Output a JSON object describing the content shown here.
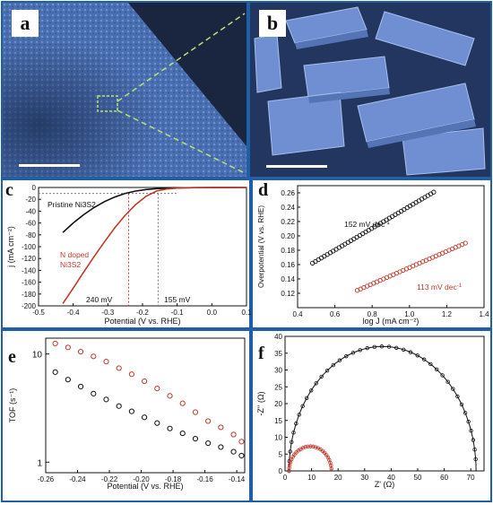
{
  "panels": {
    "a": {
      "label": "a"
    },
    "b": {
      "label": "b"
    },
    "c": {
      "label": "c"
    },
    "d": {
      "label": "d"
    },
    "e": {
      "label": "e"
    },
    "f": {
      "label": "f"
    }
  },
  "colors": {
    "frame": "#1f5fa8",
    "sem": "#3d5f9e",
    "black": "#111111",
    "red": "#c0392b"
  },
  "chart_data": [
    {
      "id": "c",
      "type": "line",
      "xlabel": "Potential (V vs. RHE)",
      "ylabel": "j (mA cm⁻²)",
      "xlim": [
        -0.5,
        0.1
      ],
      "ylim": [
        -200,
        0
      ],
      "xticks": [
        "-0.5",
        "-0.4",
        "-0.3",
        "-0.2",
        "-0.1",
        "0.0",
        "0.1"
      ],
      "yticks": [
        "0",
        "-20",
        "-40",
        "-60",
        "-80",
        "-100",
        "-120",
        "-140",
        "-160",
        "-180",
        "-200"
      ],
      "series": [
        {
          "name": "Pristine Ni3S2",
          "color": "#111111",
          "x": [
            -0.43,
            -0.4,
            -0.37,
            -0.34,
            -0.31,
            -0.28,
            -0.25,
            -0.22,
            -0.19,
            -0.16,
            -0.13,
            -0.1,
            -0.05,
            0.0,
            0.1
          ],
          "y": [
            -76,
            -60,
            -46,
            -34,
            -24,
            -16,
            -10,
            -6,
            -3.5,
            -2,
            -1.2,
            -0.6,
            -0.3,
            -0.1,
            0
          ]
        },
        {
          "name": "N doped Ni3S2",
          "color": "#c0392b",
          "x": [
            -0.43,
            -0.4,
            -0.37,
            -0.34,
            -0.31,
            -0.28,
            -0.25,
            -0.22,
            -0.19,
            -0.16,
            -0.13,
            -0.1,
            -0.05,
            0.0,
            0.1
          ],
          "y": [
            -196,
            -170,
            -143,
            -117,
            -92,
            -68,
            -47,
            -29,
            -15,
            -6,
            -2.5,
            -1,
            -0.3,
            -0.1,
            0
          ]
        }
      ],
      "annotations": [
        {
          "text": "Pristine Ni3S2"
        },
        {
          "text": "N doped Ni3S2"
        },
        {
          "text": "240 mV"
        },
        {
          "text": "155 mV"
        }
      ],
      "dashed_lines": {
        "y_ref": -10,
        "x_values": [
          -0.24,
          -0.155
        ]
      }
    },
    {
      "id": "d",
      "type": "scatter",
      "xlabel": "log J (mA cm⁻²)",
      "ylabel": "Overpotential (V vs. RHE)",
      "xlim": [
        0.4,
        1.4
      ],
      "ylim": [
        0.1,
        0.27
      ],
      "xticks": [
        "0.4",
        "0.6",
        "0.8",
        "1.0",
        "1.2",
        "1.4"
      ],
      "yticks": [
        "0.12",
        "0.14",
        "0.16",
        "0.18",
        "0.20",
        "0.22",
        "0.24",
        "0.26"
      ],
      "series": [
        {
          "name": "152 mV dec-1",
          "color": "#111111",
          "x_range": [
            0.48,
            1.13
          ],
          "y_range": [
            0.162,
            0.261
          ],
          "n": 42
        },
        {
          "name": "113 mV dec-1",
          "color": "#c0392b",
          "x_range": [
            0.72,
            1.3
          ],
          "y_range": [
            0.124,
            0.19
          ],
          "n": 34
        }
      ],
      "annotations": [
        {
          "text": "152 mV dec",
          "sup": "-1"
        },
        {
          "text": "113 mV dec",
          "sup": "-1"
        }
      ]
    },
    {
      "id": "e",
      "type": "scatter",
      "xlabel": "Potential (V vs. RHE)",
      "ylabel": "TOF (s⁻¹)",
      "xlim": [
        -0.26,
        -0.135
      ],
      "ylim_log": [
        0.8,
        14
      ],
      "xticks": [
        "-0.26",
        "-0.24",
        "-0.22",
        "-0.20",
        "-0.18",
        "-0.16",
        "-0.14"
      ],
      "yticks": [
        "1",
        "10"
      ],
      "series": [
        {
          "color": "#c0392b",
          "x": [
            -0.254,
            -0.246,
            -0.238,
            -0.23,
            -0.222,
            -0.214,
            -0.206,
            -0.198,
            -0.19,
            -0.182,
            -0.174,
            -0.166,
            -0.158,
            -0.15,
            -0.142,
            -0.137
          ],
          "y": [
            12.5,
            11.5,
            10.5,
            9.5,
            8.5,
            7.4,
            6.5,
            5.6,
            4.8,
            4.1,
            3.5,
            2.9,
            2.4,
            2.1,
            1.8,
            1.55
          ]
        },
        {
          "color": "#111111",
          "x": [
            -0.254,
            -0.246,
            -0.238,
            -0.23,
            -0.222,
            -0.214,
            -0.206,
            -0.198,
            -0.19,
            -0.182,
            -0.174,
            -0.166,
            -0.158,
            -0.15,
            -0.142,
            -0.137
          ],
          "y": [
            6.8,
            5.8,
            5.0,
            4.3,
            3.8,
            3.3,
            2.95,
            2.6,
            2.3,
            2.05,
            1.85,
            1.65,
            1.5,
            1.38,
            1.25,
            1.15
          ]
        }
      ]
    },
    {
      "id": "f",
      "type": "scatter",
      "xlabel": "Z' (Ω)",
      "ylabel": "-Z'' (Ω)",
      "xlim": [
        0,
        75
      ],
      "ylim": [
        0,
        40
      ],
      "xticks": [
        "0",
        "10",
        "20",
        "30",
        "40",
        "50",
        "60",
        "70"
      ],
      "yticks": [
        "0",
        "5",
        "10",
        "15",
        "20",
        "25",
        "30",
        "35",
        "40"
      ],
      "series": [
        {
          "color": "#111111",
          "arc": {
            "x0": 1.5,
            "x1": 72,
            "peak": 37
          },
          "n": 40
        },
        {
          "color": "#c0392b",
          "arc": {
            "x0": 1.5,
            "x1": 17.5,
            "peak": 7.3
          },
          "n": 26
        }
      ]
    }
  ]
}
